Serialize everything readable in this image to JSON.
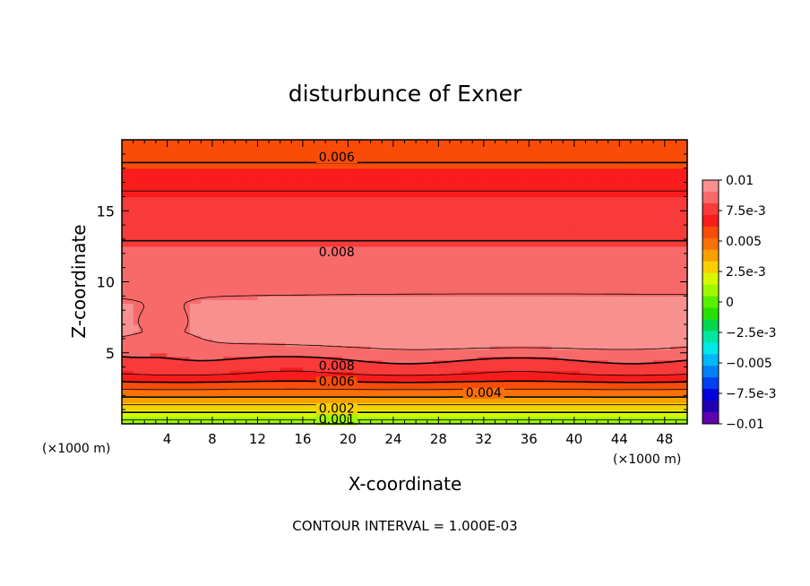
{
  "chart_data": {
    "type": "heatmap",
    "title": "disturbunce of Exner",
    "xlabel": "X-coordinate",
    "ylabel": "Z-coordinate",
    "x_unit_left": "(×1000 m)",
    "x_unit_right": "(×1000 m)",
    "xlim": [
      0,
      50
    ],
    "ylim": [
      0,
      20
    ],
    "x_ticks": [
      4,
      8,
      12,
      16,
      20,
      24,
      28,
      32,
      36,
      40,
      44,
      48
    ],
    "y_ticks": [
      5,
      10,
      15
    ],
    "footer": "CONTOUR INTERVAL = 1.000E-03",
    "colorbar": {
      "min": -0.01,
      "max": 0.01,
      "labels": [
        "0.01",
        "7.5e-3",
        "0.005",
        "2.5e-3",
        "0",
        "-2.5e-3",
        "-0.005",
        "-7.5e-3",
        "-0.01"
      ],
      "label_values": [
        0.01,
        0.0075,
        0.005,
        0.0025,
        0,
        -0.0025,
        -0.005,
        -0.0075,
        -0.01
      ],
      "colors": [
        "#f89090",
        "#f86a6a",
        "#f83a3a",
        "#f81c1c",
        "#f84c08",
        "#f87008",
        "#f8a000",
        "#f8d000",
        "#d8f800",
        "#a0f800",
        "#58f000",
        "#28e000",
        "#00d84c",
        "#00e8a0",
        "#00e8e8",
        "#00b8f8",
        "#0080f8",
        "#0040f0",
        "#0000d8",
        "#2000b0",
        "#6000b0"
      ]
    },
    "contour_levels": [
      0.001,
      0.002,
      0.003,
      0.004,
      0.005,
      0.006,
      0.007,
      0.008,
      0.009
    ],
    "contour_labels": [
      {
        "text": "0.006",
        "x": 19.0,
        "z": 18.8
      },
      {
        "text": "0.008",
        "x": 19.0,
        "z": 12.1
      },
      {
        "text": "0.008",
        "x": 19.0,
        "z": 4.1
      },
      {
        "text": "0.006",
        "x": 19.0,
        "z": 3.0
      },
      {
        "text": "0.004",
        "x": 32.0,
        "z": 2.2
      },
      {
        "text": "0.002",
        "x": 19.0,
        "z": 1.1
      },
      {
        "text": "0.001",
        "x": 19.0,
        "z": 0.35
      }
    ]
  }
}
